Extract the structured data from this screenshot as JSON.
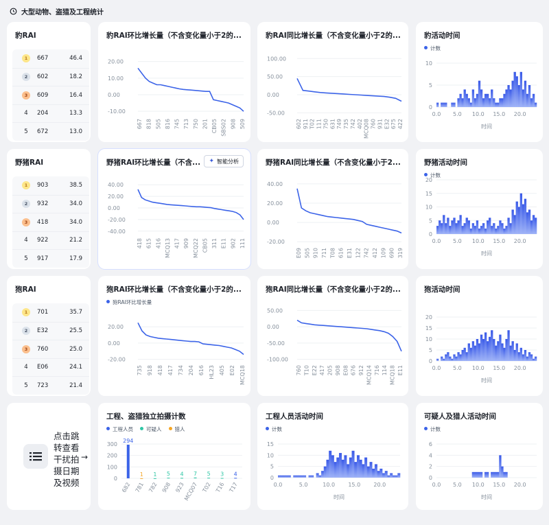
{
  "header": {
    "title": "大型动物、盗猎及工程统计"
  },
  "leopard": {
    "rank_title": "豹RAI",
    "rank": [
      {
        "badge": "1",
        "name": "667",
        "value": "46.4"
      },
      {
        "badge": "2",
        "name": "602",
        "value": "18.2"
      },
      {
        "badge": "3",
        "name": "609",
        "value": "16.4"
      },
      {
        "badge": "4",
        "name": "204",
        "value": "13.3"
      },
      {
        "badge": "5",
        "name": "672",
        "value": "13.0"
      }
    ],
    "mom_title": "豹RAI环比增长量（不含变化量小于2的...",
    "yoy_title": "豹RAI同比增长量（不含变化量小于2的...",
    "act_title": "豹活动时间",
    "act_legend": "计数"
  },
  "boar": {
    "rank_title": "野猪RAI",
    "rank": [
      {
        "badge": "1",
        "name": "903",
        "value": "38.5"
      },
      {
        "badge": "2",
        "name": "932",
        "value": "34.0"
      },
      {
        "badge": "3",
        "name": "418",
        "value": "34.0"
      },
      {
        "badge": "4",
        "name": "922",
        "value": "21.2"
      },
      {
        "badge": "5",
        "name": "917",
        "value": "17.9"
      }
    ],
    "mom_title": "野猪RAI环比增长量（不含...",
    "ai_button": "智能分析",
    "yoy_title": "野猪RAI同比增长量（不含变化量小于2...",
    "act_title": "野猪活动时间",
    "act_legend": "计数"
  },
  "dog": {
    "rank_title": "狍RAI",
    "rank": [
      {
        "badge": "1",
        "name": "701",
        "value": "35.7"
      },
      {
        "badge": "2",
        "name": "E32",
        "value": "25.5"
      },
      {
        "badge": "3",
        "name": "760",
        "value": "25.0"
      },
      {
        "badge": "4",
        "name": "E06",
        "value": "24.1"
      },
      {
        "badge": "5",
        "name": "723",
        "value": "21.4"
      }
    ],
    "mom_title": "狍RAI环比增长量（不含变化量小于2的...",
    "mom_legend": "狍RAI环比增长量",
    "yoy_title": "狍RAI同比增长量（不含变化量小于2的...",
    "act_title": "狍活动时间",
    "act_legend": "计数"
  },
  "bottom": {
    "jump_text": "点击跳转查看干扰拍摄日期及视频",
    "jump_arrow": "→",
    "eng_title": "工程、盗猎独立拍摄计数",
    "eng_legend": [
      "工程人员",
      "可疑人",
      "猎人"
    ],
    "work_title": "工程人员活动时间",
    "work_legend": "计数",
    "sus_title": "可疑人及猎人活动时间",
    "sus_legend": "计数",
    "time_label": "时间"
  },
  "colors": {
    "line": "#3b63e8",
    "bar": "#4a6cf0",
    "teal": "#2fc6a5",
    "orange": "#f5a524"
  },
  "chart_data": [
    {
      "id": "leopard_mom",
      "type": "line",
      "ylim": [
        -12,
        24
      ],
      "yticks": [
        20,
        10,
        0,
        -10
      ],
      "ytick_labels": [
        "20.00",
        "10.00",
        "0.00",
        "-10.00"
      ],
      "xticklabels": [
        "667",
        "818",
        "505",
        "816",
        "745",
        "713",
        "750",
        "201",
        "CB05",
        "SBS02",
        "908",
        "509"
      ],
      "values": [
        16,
        13,
        10,
        8,
        7,
        6,
        6,
        5.5,
        5,
        4.5,
        4,
        3.5,
        3.2,
        3,
        2.8,
        2.6,
        2.4,
        2.2,
        2,
        2,
        -3,
        -3.5,
        -4,
        -4.5,
        -5,
        -6,
        -7,
        -8,
        -10
      ]
    },
    {
      "id": "leopard_yoy",
      "type": "line",
      "ylim": [
        -55,
        110
      ],
      "yticks": [
        100,
        50,
        0,
        -50
      ],
      "ytick_labels": [
        "100.00",
        "50.00",
        "0.00",
        "-50.00"
      ],
      "xticklabels": [
        "602",
        "911",
        "T02",
        "111",
        "750",
        "631",
        "749",
        "735",
        "742",
        "402",
        "MCQ08",
        "760",
        "931",
        "E32",
        "675",
        "422"
      ],
      "values": [
        45,
        12,
        10,
        8,
        6,
        5,
        4,
        3,
        2,
        1,
        0,
        -1,
        -2,
        -3,
        -4,
        -5,
        -7,
        -10,
        -18
      ]
    },
    {
      "id": "leopard_act",
      "type": "bar",
      "ylim": [
        0,
        10
      ],
      "yticks": [
        10,
        5,
        0
      ],
      "xlim": [
        0,
        24
      ],
      "xticks": [
        0.0,
        5.0,
        10.0,
        15.0,
        20.0
      ],
      "xlabel": "时间",
      "series": [
        {
          "name": "计数"
        }
      ],
      "values": [
        1,
        0,
        1,
        1,
        1,
        0,
        0,
        1,
        1,
        0,
        2,
        3,
        2,
        4,
        3,
        2,
        1,
        4,
        2,
        3,
        6,
        4,
        2,
        3,
        3,
        2,
        4,
        2,
        1,
        1,
        2,
        2,
        3,
        4,
        5,
        4,
        6,
        8,
        7,
        5,
        8,
        4,
        6,
        3,
        5,
        2,
        3,
        1
      ]
    },
    {
      "id": "boar_mom",
      "type": "line",
      "ylim": [
        -45,
        45
      ],
      "yticks": [
        40,
        20,
        0,
        -20,
        -40
      ],
      "ytick_labels": [
        "40.00",
        "20.00",
        "0.00",
        "-20.00",
        "-40.00"
      ],
      "xticklabels": [
        "418",
        "615",
        "416",
        "MCQ13",
        "417",
        "909",
        "MCQ22",
        "CB05",
        "311",
        "E11",
        "902",
        "111"
      ],
      "values": [
        32,
        18,
        14,
        12,
        10,
        9,
        8,
        7,
        6,
        5.5,
        5,
        4.5,
        4,
        3.5,
        3,
        2.5,
        2,
        2,
        1.5,
        1,
        0.5,
        -1,
        -2,
        -3,
        -4,
        -5,
        -6,
        -8,
        -12,
        -20
      ]
    },
    {
      "id": "boar_yoy",
      "type": "line",
      "ylim": [
        -22,
        42
      ],
      "yticks": [
        40,
        20,
        0,
        -20
      ],
      "ytick_labels": [
        "40.00",
        "20.00",
        "0.00",
        "-20.00"
      ],
      "xticklabels": [
        "E09",
        "505",
        "910",
        "711",
        "T08",
        "616",
        "E31",
        "122",
        "742",
        "412",
        "109",
        "690",
        "319"
      ],
      "values": [
        35,
        15,
        12,
        10,
        9,
        8,
        7,
        6,
        5.5,
        5,
        4.5,
        4,
        3.5,
        3,
        2,
        1,
        -2,
        -3,
        -4,
        -5,
        -6,
        -7,
        -8,
        -9,
        -11
      ]
    },
    {
      "id": "boar_act",
      "type": "bar",
      "ylim": [
        0,
        20
      ],
      "yticks": [
        20,
        15,
        10,
        5,
        0
      ],
      "xlim": [
        0,
        24
      ],
      "xticks": [
        0.0,
        5.0,
        10.0,
        15.0,
        20.0
      ],
      "xlabel": "时间",
      "series": [
        {
          "name": "计数"
        }
      ],
      "values": [
        3,
        5,
        4,
        7,
        4,
        6,
        3,
        5,
        6,
        4,
        5,
        7,
        3,
        4,
        6,
        5,
        2,
        4,
        3,
        5,
        2,
        3,
        4,
        2,
        5,
        6,
        3,
        4,
        2,
        3,
        5,
        4,
        2,
        3,
        6,
        4,
        9,
        7,
        12,
        10,
        15,
        11,
        13,
        8,
        9,
        5,
        7,
        6
      ]
    },
    {
      "id": "dog_mom",
      "type": "line",
      "ylim": [
        -22,
        32
      ],
      "yticks": [
        20,
        0,
        -20
      ],
      "ytick_labels": [
        "20.00",
        "0.00",
        "-20.00"
      ],
      "series": [
        {
          "name": "狍RAI环比增长量"
        }
      ],
      "xticklabels": [
        "735",
        "918",
        "418",
        "417",
        "734",
        "204",
        "616",
        "HL23",
        "405",
        "E02",
        "MCQ18"
      ],
      "values": [
        25,
        15,
        10,
        8,
        7,
        6,
        5.5,
        5,
        4.5,
        4,
        3.5,
        3,
        2.5,
        2,
        2,
        1.5,
        -1,
        -1.5,
        -2,
        -2.5,
        -3,
        -4,
        -5,
        -6,
        -8,
        -10,
        -14
      ]
    },
    {
      "id": "dog_yoy",
      "type": "line",
      "ylim": [
        -105,
        55
      ],
      "yticks": [
        50,
        0,
        -50,
        -100
      ],
      "ytick_labels": [
        "50.00",
        "0.00",
        "-50.00",
        "-100.00"
      ],
      "xticklabels": [
        "760",
        "T10",
        "E22",
        "417",
        "205",
        "908",
        "E08",
        "676",
        "912",
        "MCQ14",
        "716",
        "114",
        "MCQ18",
        "E11"
      ],
      "values": [
        20,
        12,
        10,
        8,
        6,
        5,
        4,
        3,
        2,
        1,
        0,
        -1,
        -2,
        -3,
        -4,
        -5,
        -6,
        -8,
        -10,
        -12,
        -15,
        -20,
        -30,
        -45,
        -75
      ]
    },
    {
      "id": "dog_act",
      "type": "bar",
      "ylim": [
        0,
        20
      ],
      "yticks": [
        20,
        15,
        10,
        5,
        0
      ],
      "xlim": [
        0,
        24
      ],
      "xticks": [
        0.0,
        5.0,
        10.0,
        15.0,
        20.0
      ],
      "xlabel": "时间",
      "series": [
        {
          "name": "计数"
        }
      ],
      "values": [
        1,
        0,
        2,
        1,
        3,
        4,
        2,
        1,
        3,
        2,
        4,
        3,
        5,
        6,
        4,
        8,
        6,
        9,
        7,
        10,
        8,
        12,
        10,
        13,
        9,
        11,
        14,
        10,
        7,
        9,
        12,
        8,
        6,
        10,
        14,
        7,
        9,
        5,
        8,
        4,
        6,
        3,
        5,
        2,
        4,
        3,
        1,
        2
      ]
    },
    {
      "id": "eng_count",
      "type": "bar",
      "ylim": [
        0,
        300
      ],
      "yticks": [
        300,
        200,
        100,
        0
      ],
      "categories": [
        "682",
        "781",
        "782",
        "908",
        "923",
        "MCQ07",
        "T02",
        "T16",
        "T17"
      ],
      "series": [
        {
          "name": "工程人员",
          "values": [
            294,
            0,
            0,
            0,
            0,
            0,
            0,
            0,
            4
          ]
        },
        {
          "name": "可疑人",
          "values": [
            0,
            0,
            1,
            5,
            4,
            7,
            5,
            3,
            0
          ]
        },
        {
          "name": "猎人",
          "values": [
            0,
            1,
            0,
            0,
            0,
            0,
            0,
            0,
            0
          ]
        }
      ],
      "labels": [
        "294",
        "1",
        "1",
        "5",
        "4",
        "7",
        "5",
        "3",
        "4"
      ]
    },
    {
      "id": "work_act",
      "type": "bar",
      "ylim": [
        0,
        15
      ],
      "yticks": [
        15,
        10,
        5,
        0
      ],
      "xlim": [
        0,
        24
      ],
      "xticks": [
        0.0,
        5.0,
        10.0,
        15.0,
        20.0
      ],
      "xlabel": "时间",
      "series": [
        {
          "name": "计数"
        }
      ],
      "values": [
        1,
        1,
        1,
        1,
        1,
        0,
        1,
        1,
        1,
        1,
        1,
        0,
        1,
        1,
        0,
        2,
        1,
        3,
        5,
        8,
        12,
        10,
        7,
        9,
        11,
        8,
        10,
        6,
        9,
        12,
        7,
        10,
        8,
        6,
        9,
        5,
        7,
        4,
        6,
        3,
        4,
        2,
        3,
        1,
        2,
        1,
        1,
        2
      ]
    },
    {
      "id": "sus_act",
      "type": "bar",
      "ylim": [
        0,
        6
      ],
      "yticks": [
        6,
        4,
        2,
        0
      ],
      "xlim": [
        0,
        24
      ],
      "xticks": [
        0.0,
        5.0,
        10.0,
        15.0,
        20.0
      ],
      "xlabel": "时间",
      "series": [
        {
          "name": "计数"
        }
      ],
      "values": [
        0,
        0,
        0,
        0,
        0,
        0,
        0,
        0,
        0,
        0,
        0,
        0,
        0,
        0,
        0,
        0,
        0,
        1,
        1,
        1,
        1,
        1,
        0,
        1,
        1,
        0,
        1,
        1,
        1,
        1,
        4,
        2,
        1,
        1,
        0,
        0,
        0,
        0,
        0,
        0,
        0,
        0,
        0,
        0,
        0,
        0,
        0,
        0
      ]
    }
  ]
}
